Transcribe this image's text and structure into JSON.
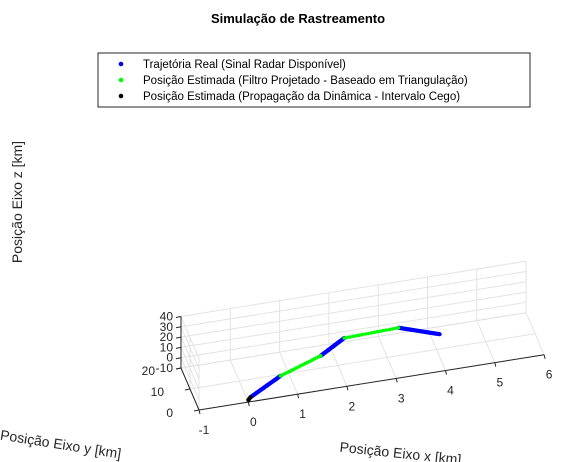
{
  "chart_data": {
    "type": "scatter",
    "projection": "3d",
    "title": "Simulação de Rastreamento",
    "xlabel": "Posição Eixo x [km]",
    "ylabel": "Posição Eixo y [km]",
    "zlabel": "Posição Eixo z [km]",
    "xlim": [
      -1,
      6
    ],
    "ylim": [
      0,
      20
    ],
    "zlim": [
      -10,
      40
    ],
    "xticks": [
      "-1",
      "0",
      "1",
      "2",
      "3",
      "4",
      "5",
      "6"
    ],
    "yticks": [
      "0",
      "10",
      "20"
    ],
    "zticks": [
      "-10",
      "0",
      "10",
      "20",
      "30",
      "40"
    ],
    "grid": true,
    "legend_position": "top",
    "series": [
      {
        "name": "Trajetória Real (Sinal Radar Disponível)",
        "color": "#0000ff",
        "segments": [
          {
            "x": [
              0.05,
              0.7
            ],
            "y": [
              0.2,
              2.5
            ],
            "z": [
              -6,
              5
            ]
          },
          {
            "x": [
              1.6,
              2.1
            ],
            "y": [
              7.2,
              8.4
            ],
            "z": [
              8,
              19
            ]
          },
          {
            "x": [
              3.2,
              4.1
            ],
            "y": [
              8.4,
              12.0
            ],
            "z": [
              20.5,
              0
            ]
          }
        ]
      },
      {
        "name": "Posição Estimada (Filtro Projetado - Baseado em Triangulação)",
        "color": "#00ff00",
        "segments": [
          {
            "x": [
              0.7,
              1.6
            ],
            "y": [
              2.5,
              7.2
            ],
            "z": [
              5,
              8
            ]
          },
          {
            "x": [
              2.1,
              3.2
            ],
            "y": [
              8.4,
              8.4
            ],
            "z": [
              19,
              20.5
            ]
          }
        ]
      },
      {
        "name": "Posição Estimada (Propagação da Dinâmica - Intervalo Cego)",
        "color": "#000000",
        "segments": [
          {
            "x": [
              0.0,
              0.05
            ],
            "y": [
              0.0,
              0.2
            ],
            "z": [
              -8,
              -6
            ]
          }
        ]
      }
    ]
  }
}
